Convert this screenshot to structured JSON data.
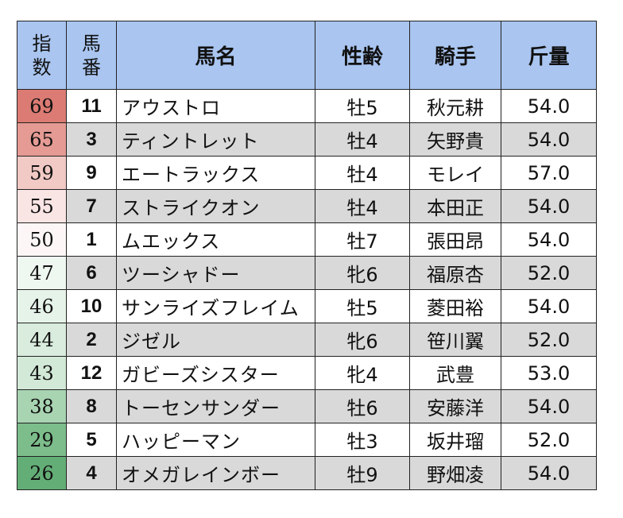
{
  "header": {
    "index_line1": "指",
    "index_line2": "数",
    "number_line1": "馬",
    "number_line2": "番",
    "name": "馬名",
    "sex_age": "性齢",
    "jockey": "騎手",
    "weight": "斤量"
  },
  "rows": [
    {
      "index": "69",
      "number": "11",
      "name": "アウストロ",
      "sex_age": "牡5",
      "jockey": "秋元耕",
      "weight": "54.0",
      "index_color": "#db7b73"
    },
    {
      "index": "65",
      "number": "3",
      "name": "ティントレット",
      "sex_age": "牡4",
      "jockey": "矢野貴",
      "weight": "54.0",
      "index_color": "#e59a94"
    },
    {
      "index": "59",
      "number": "9",
      "name": "エートラックス",
      "sex_age": "牡4",
      "jockey": "モレイ",
      "weight": "57.0",
      "index_color": "#f1c9c5"
    },
    {
      "index": "55",
      "number": "7",
      "name": "ストライクオン",
      "sex_age": "牡4",
      "jockey": "本田正",
      "weight": "54.0",
      "index_color": "#f9e5e3"
    },
    {
      "index": "50",
      "number": "1",
      "name": "ムエックス",
      "sex_age": "牡7",
      "jockey": "張田昂",
      "weight": "54.0",
      "index_color": "#fcf7f6"
    },
    {
      "index": "47",
      "number": "6",
      "name": "ツーシャドー",
      "sex_age": "牝6",
      "jockey": "福原杏",
      "weight": "52.0",
      "index_color": "#eff7f1"
    },
    {
      "index": "46",
      "number": "10",
      "name": "サンライズフレイム",
      "sex_age": "牡5",
      "jockey": "菱田裕",
      "weight": "54.0",
      "index_color": "#e6f3e9"
    },
    {
      "index": "44",
      "number": "2",
      "name": "ジゼル",
      "sex_age": "牝6",
      "jockey": "笹川翼",
      "weight": "52.0",
      "index_color": "#d9ecdd"
    },
    {
      "index": "43",
      "number": "12",
      "name": "ガビーズシスター",
      "sex_age": "牝4",
      "jockey": "武豊",
      "weight": "53.0",
      "index_color": "#d2e9d7"
    },
    {
      "index": "38",
      "number": "8",
      "name": "トーセンサンダー",
      "sex_age": "牡6",
      "jockey": "安藤洋",
      "weight": "54.0",
      "index_color": "#a8d4b2"
    },
    {
      "index": "29",
      "number": "5",
      "name": "ハッピーマン",
      "sex_age": "牡3",
      "jockey": "坂井瑠",
      "weight": "52.0",
      "index_color": "#7cbd8b"
    },
    {
      "index": "26",
      "number": "4",
      "name": "オメガレインボー",
      "sex_age": "牡9",
      "jockey": "野畑凌",
      "weight": "54.0",
      "index_color": "#63ae76"
    }
  ]
}
